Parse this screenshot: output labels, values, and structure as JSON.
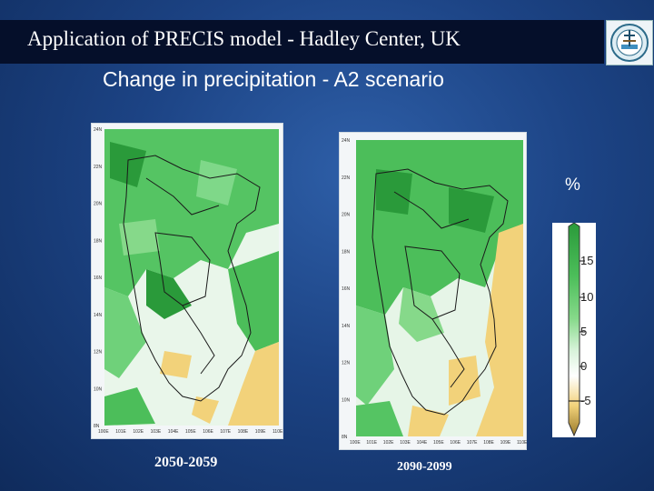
{
  "header": {
    "title": "Application of  PRECIS model - Hadley Center, UK",
    "subtitle": "Change in precipitation - A2 scenario"
  },
  "maps": [
    {
      "period": "2050-2059",
      "lat_labels": [
        "8N",
        "10N",
        "12N",
        "14N",
        "16N",
        "18N",
        "20N",
        "22N",
        "24N"
      ],
      "lon_labels": [
        "100E",
        "101E",
        "102E",
        "103E",
        "104E",
        "105E",
        "106E",
        "107E",
        "108E",
        "109E",
        "110E"
      ]
    },
    {
      "period": "2090-2099",
      "lat_labels": [
        "8N",
        "10N",
        "12N",
        "14N",
        "16N",
        "18N",
        "20N",
        "22N",
        "24N"
      ],
      "lon_labels": [
        "100E",
        "101E",
        "102E",
        "103E",
        "104E",
        "105E",
        "106E",
        "107E",
        "108E",
        "109E",
        "110E"
      ]
    }
  ],
  "legend": {
    "unit": "%",
    "ticks": [
      "15",
      "10",
      "5",
      "0",
      "-5"
    ],
    "colors": [
      "#2a9a3a",
      "#4cbe5a",
      "#86d98a",
      "#d8f3da",
      "#ffffff",
      "#f2d27a",
      "#9a7a2a"
    ]
  },
  "colors": {
    "background": "#1c4384",
    "title_bar": "#050f2a",
    "increase": "#4cbe5a",
    "strong_increase": "#2a9a3a",
    "decrease": "#f2d27a"
  },
  "logo": {
    "icon": "institute-emblem-icon"
  }
}
